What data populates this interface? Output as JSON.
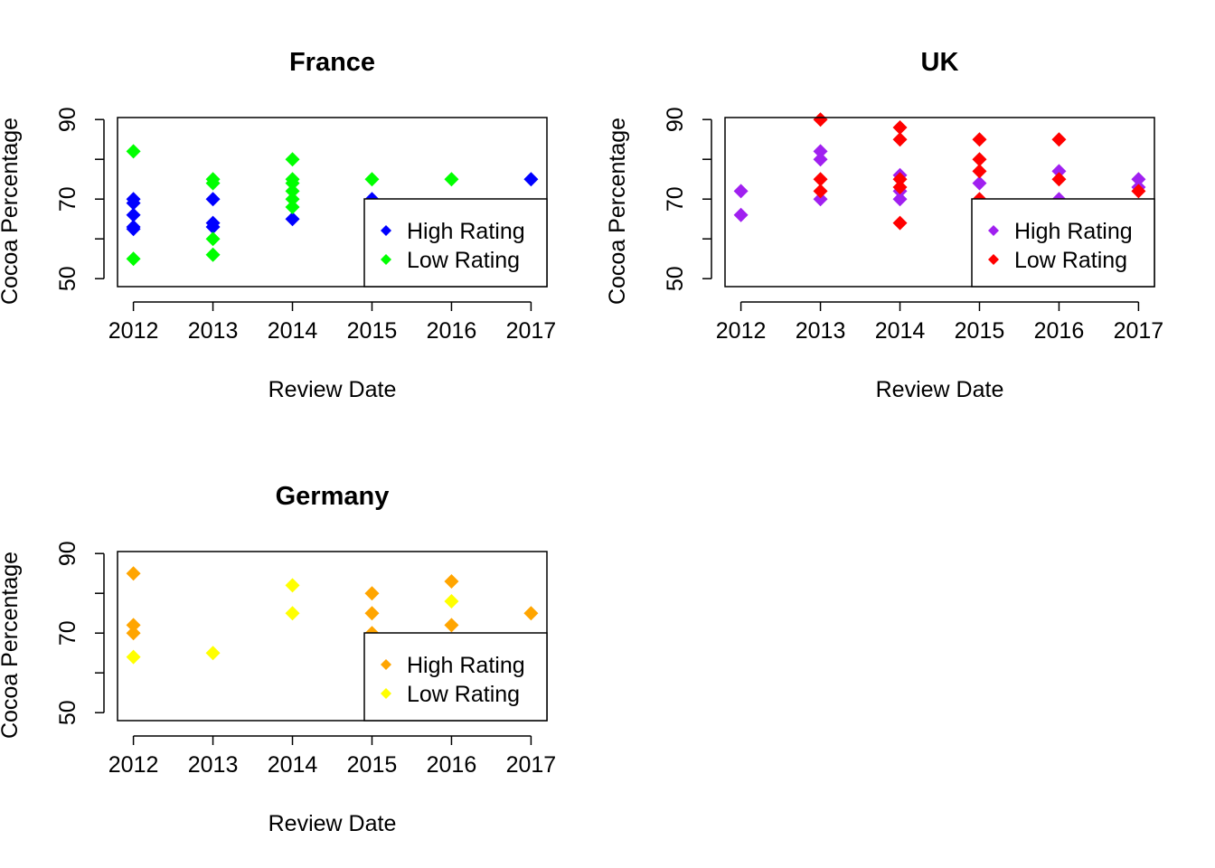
{
  "chart_data": [
    {
      "type": "scatter",
      "title": "France",
      "xlabel": "Review Date",
      "ylabel": "Cocoa Percentage",
      "x_ticks": [
        "2012",
        "2013",
        "2014",
        "2015",
        "2016",
        "2017"
      ],
      "y_ticks": [
        "50",
        "70",
        "90"
      ],
      "xlim": [
        2011.8,
        2017.2
      ],
      "ylim": [
        48,
        90.5
      ],
      "legend_position": "bottom-right",
      "series": [
        {
          "name": "High Rating",
          "color": "#0000ff",
          "points": [
            [
              2012,
              70
            ],
            [
              2012,
              69
            ],
            [
              2012,
              66
            ],
            [
              2012,
              63
            ],
            [
              2012,
              62.5
            ],
            [
              2013,
              70
            ],
            [
              2013,
              64
            ],
            [
              2013,
              63
            ],
            [
              2014,
              65
            ],
            [
              2015,
              70
            ],
            [
              2017,
              75
            ]
          ]
        },
        {
          "name": "Low Rating",
          "color": "#00ff00",
          "points": [
            [
              2012,
              82
            ],
            [
              2012,
              55
            ],
            [
              2013,
              75
            ],
            [
              2013,
              74
            ],
            [
              2013,
              60
            ],
            [
              2013,
              56
            ],
            [
              2014,
              80
            ],
            [
              2014,
              75
            ],
            [
              2014,
              74
            ],
            [
              2014,
              72
            ],
            [
              2014,
              70
            ],
            [
              2014,
              68
            ],
            [
              2015,
              75
            ],
            [
              2016,
              75
            ]
          ]
        }
      ]
    },
    {
      "type": "scatter",
      "title": "UK",
      "xlabel": "Review Date",
      "ylabel": "Cocoa Percentage",
      "x_ticks": [
        "2012",
        "2013",
        "2014",
        "2015",
        "2016",
        "2017"
      ],
      "y_ticks": [
        "50",
        "70",
        "90"
      ],
      "xlim": [
        2011.8,
        2017.2
      ],
      "ylim": [
        48,
        90.5
      ],
      "legend_position": "bottom-right",
      "series": [
        {
          "name": "High Rating",
          "color": "#a020f0",
          "points": [
            [
              2012,
              72
            ],
            [
              2012,
              66
            ],
            [
              2013,
              82
            ],
            [
              2013,
              80
            ],
            [
              2013,
              70
            ],
            [
              2014,
              76
            ],
            [
              2014,
              72
            ],
            [
              2014,
              70
            ],
            [
              2015,
              74
            ],
            [
              2016,
              77
            ],
            [
              2016,
              70
            ],
            [
              2017,
              75
            ],
            [
              2017,
              73
            ]
          ]
        },
        {
          "name": "Low Rating",
          "color": "#ff0000",
          "points": [
            [
              2013,
              90
            ],
            [
              2013,
              75
            ],
            [
              2013,
              72
            ],
            [
              2014,
              88
            ],
            [
              2014,
              85
            ],
            [
              2014,
              75
            ],
            [
              2014,
              73
            ],
            [
              2014,
              64
            ],
            [
              2015,
              85
            ],
            [
              2015,
              80
            ],
            [
              2015,
              77
            ],
            [
              2015,
              70
            ],
            [
              2016,
              85
            ],
            [
              2016,
              75
            ],
            [
              2017,
              72
            ]
          ]
        }
      ]
    },
    {
      "type": "scatter",
      "title": "Germany",
      "xlabel": "Review Date",
      "ylabel": "Cocoa Percentage",
      "x_ticks": [
        "2012",
        "2013",
        "2014",
        "2015",
        "2016",
        "2017"
      ],
      "y_ticks": [
        "50",
        "70",
        "90"
      ],
      "xlim": [
        2011.8,
        2017.2
      ],
      "ylim": [
        48,
        90.5
      ],
      "legend_position": "bottom-right",
      "series": [
        {
          "name": "High Rating",
          "color": "#ffa500",
          "points": [
            [
              2012,
              85
            ],
            [
              2012,
              72
            ],
            [
              2012,
              70
            ],
            [
              2015,
              80
            ],
            [
              2015,
              75
            ],
            [
              2015,
              70
            ],
            [
              2016,
              83
            ],
            [
              2016,
              72
            ],
            [
              2017,
              75
            ]
          ]
        },
        {
          "name": "Low Rating",
          "color": "#ffff00",
          "points": [
            [
              2012,
              64
            ],
            [
              2013,
              65
            ],
            [
              2014,
              82
            ],
            [
              2014,
              75
            ],
            [
              2016,
              78
            ]
          ]
        }
      ]
    }
  ]
}
